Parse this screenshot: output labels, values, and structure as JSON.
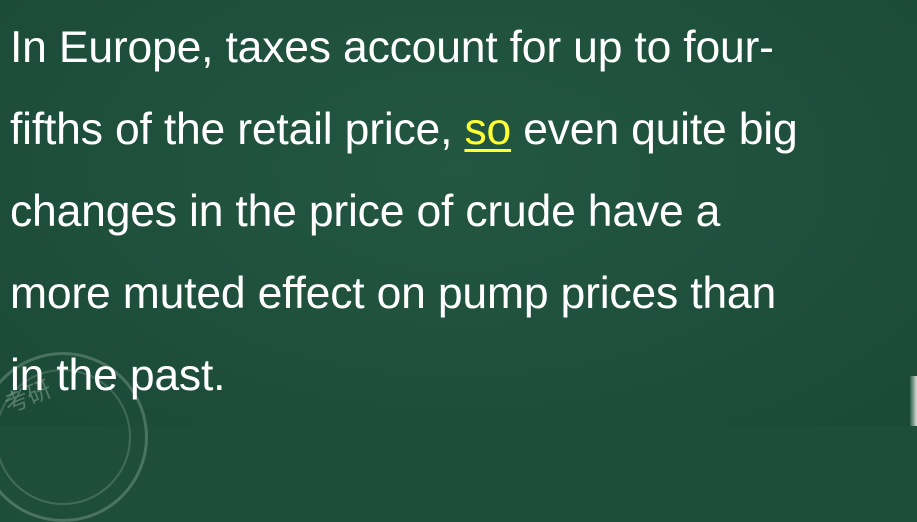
{
  "slide": {
    "lines": [
      {
        "text": "In Europe, taxes account for up to four-"
      },
      {
        "before": "fifths of the retail price, ",
        "highlight": "so",
        "after": " even quite big"
      },
      {
        "text": "changes in the price of crude have a"
      },
      {
        "text": "more muted effect on pump prices than"
      },
      {
        "text": "in the past."
      }
    ],
    "watermark_text": "考研",
    "colors": {
      "background": "#1e4e3b",
      "text": "#ffffff",
      "highlight": "#ffff33"
    }
  }
}
